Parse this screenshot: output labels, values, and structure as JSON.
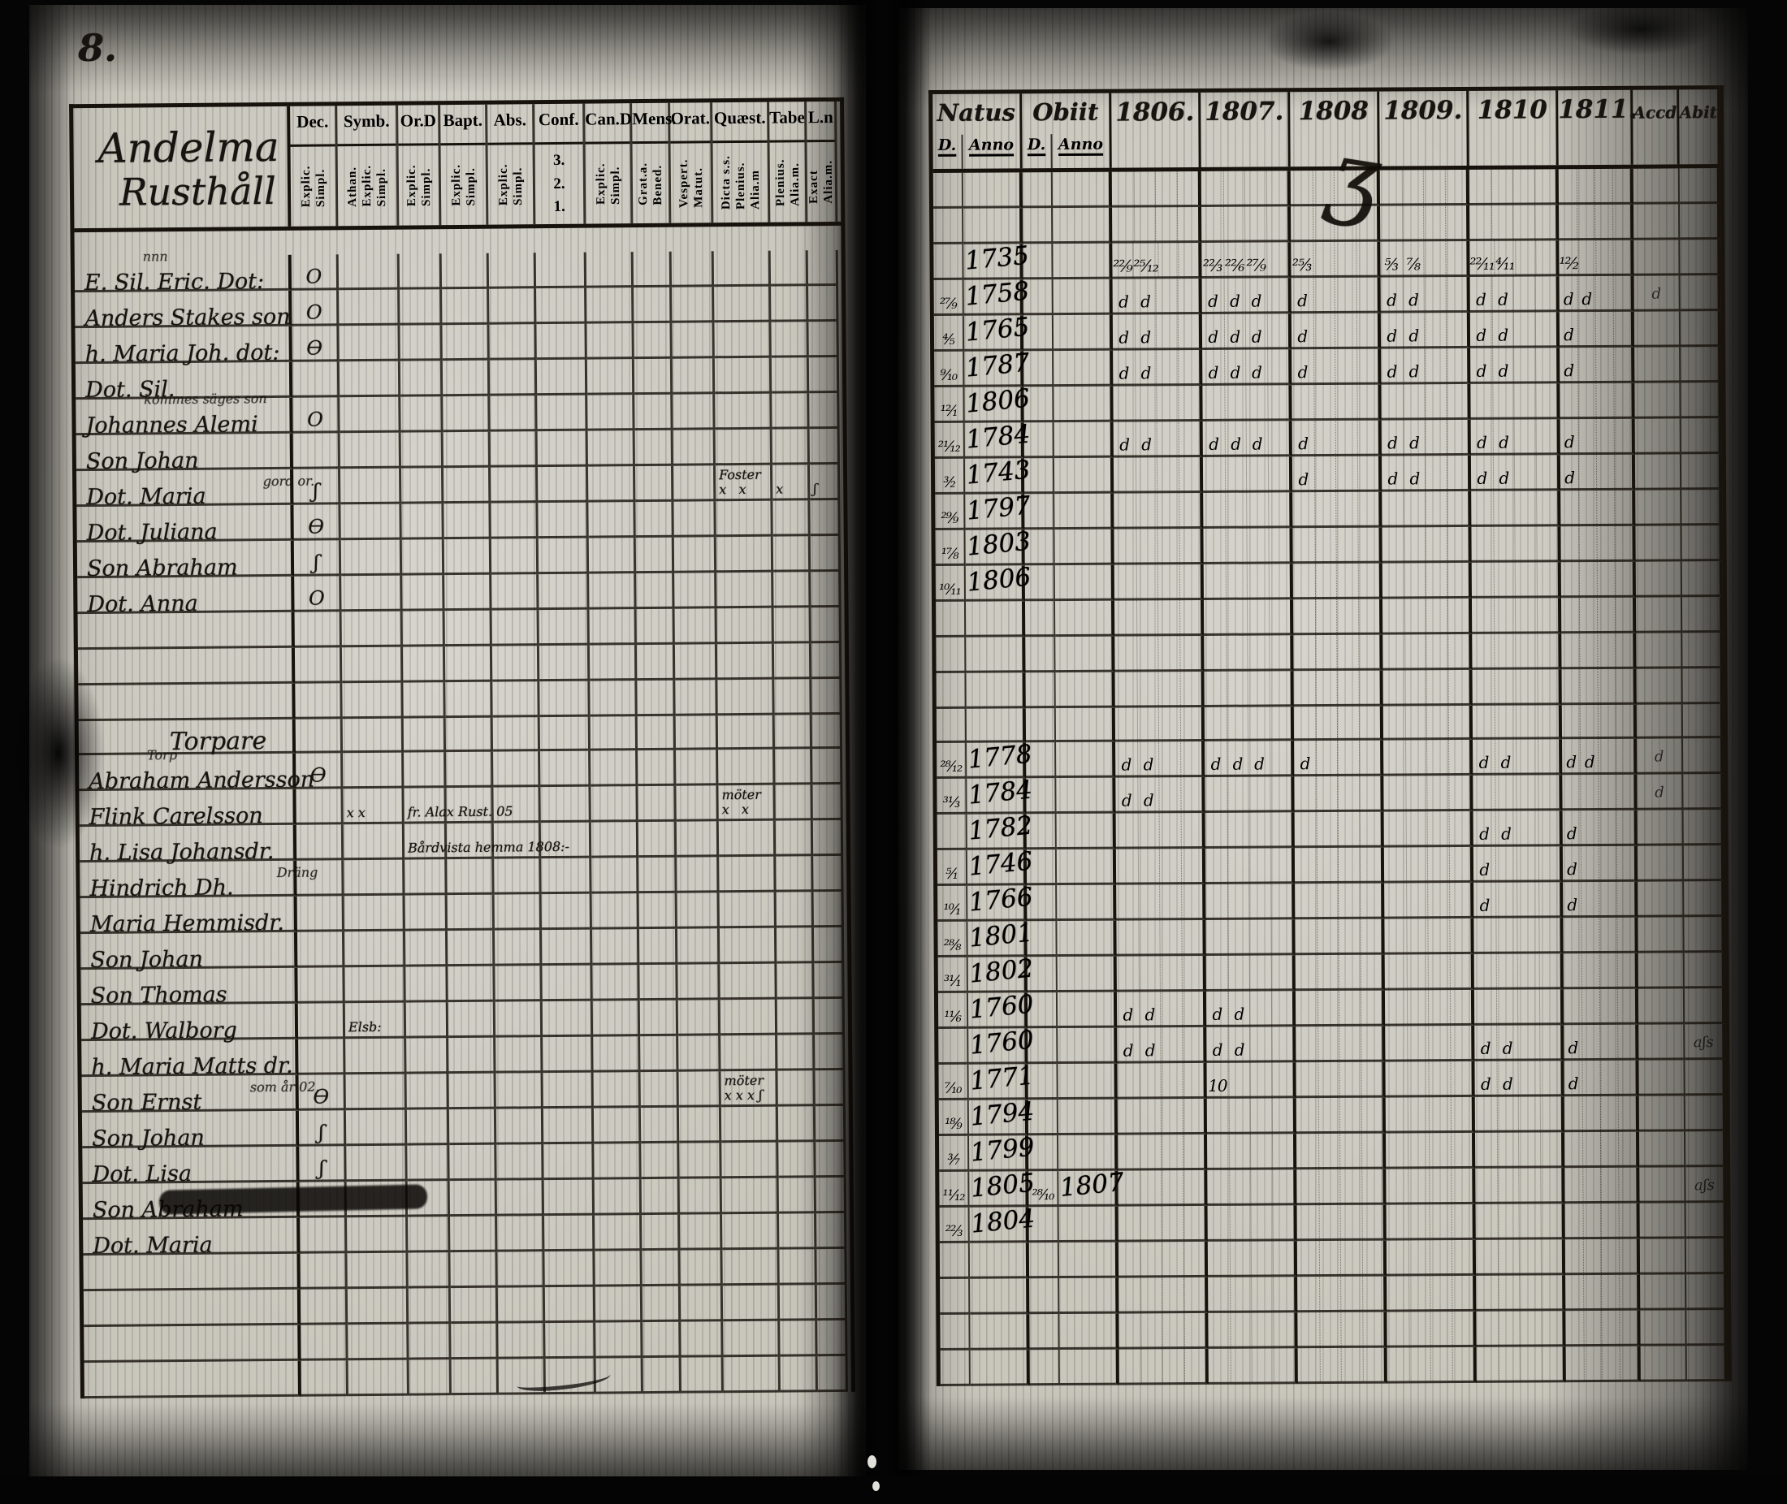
{
  "page_number": "8.",
  "left_page": {
    "title_line1": "Andelma",
    "title_line2": "Rusthåll",
    "section2_heading": "Torpare",
    "columns": [
      {
        "label": "Dec.",
        "sub_v": "Explic.\nSimpl.",
        "sub_h": ""
      },
      {
        "label": "Symb.",
        "sub_v": "Athan.\nExplic.\nSimpl.",
        "sub_h": ""
      },
      {
        "label": "Or.D",
        "sub_v": "Explic.\nSimpl.",
        "sub_h": ""
      },
      {
        "label": "Bapt.",
        "sub_v": "Explic.\nSimpl.",
        "sub_h": ""
      },
      {
        "label": "Abs.",
        "sub_v": "Explic.\nSimpl.",
        "sub_h": ""
      },
      {
        "label": "Conf.",
        "sub_v": "",
        "sub_h": "3.\n2.\n1."
      },
      {
        "label": "Can.D",
        "sub_v": "Explic.\nSimpl.",
        "sub_h": ""
      },
      {
        "label": "Mens.",
        "sub_v": "Grat.a.\nBened.",
        "sub_h": ""
      },
      {
        "label": "Orat.",
        "sub_v": "Vespert.\nMatut.",
        "sub_h": ""
      },
      {
        "label": "Quæst.",
        "sub_v": "Dicta s.s.\nPlenius.\nAlia.m",
        "sub_h": ""
      },
      {
        "label": "Tabe",
        "sub_v": "Plenius.\nAlia.m.",
        "sub_h": ""
      },
      {
        "label": "L.n",
        "sub_v": "Exact\nAlia.m.",
        "sub_h": ""
      }
    ],
    "rows1": [
      {
        "above": "nnn",
        "name": "E. Sil. Eric. Dot:",
        "dec": "O"
      },
      {
        "name": "Anders Stakes son",
        "dec": "O"
      },
      {
        "name": "h. Maria Joh. dot:",
        "dec": "Ɵ"
      },
      {
        "name": "Dot. Sil."
      },
      {
        "above": "kommes säges son",
        "name": "Johannes Alemi",
        "dec": "O"
      },
      {
        "name": "Son Johan"
      },
      {
        "name": "Dot. Maria",
        "note": "gord or.",
        "dec": "ʃ",
        "quaest": "Foster\nx   x",
        "tabe": "x",
        "ln": "ʃ"
      },
      {
        "name": "Dot. Juliana",
        "dec": "Ɵ"
      },
      {
        "name": "Son Abraham",
        "dec": "ʃ"
      },
      {
        "name": "Dot. Anna",
        "dec": "O"
      },
      {},
      {},
      {}
    ],
    "rows2": [
      {
        "above": "Torp",
        "name": "Abraham Andersson",
        "dec": "Ɵ"
      },
      {
        "name": "Flink Carelsson",
        "symb": "x x",
        "ord": "fr. Alax Rust. 05",
        "quaest": "möter\nx   x"
      },
      {
        "name": "h. Lisa Johansdr.",
        "ord": "Bårdvista hemma 1808:-"
      },
      {
        "name": "Hindrich Dh.",
        "note": "Dräng"
      },
      {
        "name": "Maria Hemmisdr."
      },
      {
        "name": "Son Johan"
      },
      {
        "name": "Son Thomas"
      },
      {
        "name": "Dot. Walborg",
        "symb": "Elsb:"
      },
      {
        "name": "h. Maria Matts dr."
      },
      {
        "name": "Son Ernst",
        "note": "som år 02.",
        "dec": "Ɵ",
        "quaest": "möter\nx x x ʃ"
      },
      {
        "name": "Son Johan",
        "dec": "ʃ"
      },
      {
        "name": "Dot. Lisa",
        "dec": "ʃ"
      },
      {
        "name": "Son Abraham"
      },
      {
        "name": "Dot. Maria"
      },
      {},
      {},
      {},
      {}
    ]
  },
  "right_page": {
    "natus_label": "Natus",
    "obiit_label": "Obiit",
    "d_label": "D.",
    "anno_label": "Anno",
    "accd_label": "Accd",
    "abit_label": "Abit",
    "years": [
      "1806.",
      "1807.",
      "1808",
      "1809.",
      "1810",
      "1811."
    ],
    "rows1": [
      {},
      {},
      {
        "anno": "1735",
        "y06": [
          "²²⁄₉",
          "²⁵⁄₁₂",
          "",
          ""
        ],
        "y07": [
          "²²⁄₃",
          "²²⁄₆",
          "²⁷⁄₉",
          ""
        ],
        "y08": [
          "²⁵⁄₃",
          "",
          "",
          ""
        ],
        "y09": [
          "⁵⁄₃",
          "⁷⁄₈",
          "",
          ""
        ],
        "y10": [
          "²²⁄₁₁",
          "⁴⁄₁₁",
          "",
          ""
        ],
        "y11": [
          "¹²⁄₂",
          "",
          "",
          ""
        ]
      },
      {
        "d": "²⁷⁄₉",
        "anno": "1758",
        "y06": [
          "d",
          "d",
          "",
          ""
        ],
        "y07": [
          "d",
          "d",
          "d",
          ""
        ],
        "y08": [
          "d",
          "",
          "",
          ""
        ],
        "y09": [
          "d",
          "d",
          "",
          ""
        ],
        "y10": [
          "d",
          "d",
          "",
          ""
        ],
        "y11": [
          "d",
          "d",
          "",
          ""
        ],
        "accd": "d"
      },
      {
        "d": "⁴⁄₅",
        "anno": "1765",
        "y06": [
          "d",
          "d",
          "",
          ""
        ],
        "y07": [
          "d",
          "d",
          "d",
          ""
        ],
        "y08": [
          "d",
          "",
          "",
          ""
        ],
        "y09": [
          "d",
          "d",
          "",
          ""
        ],
        "y10": [
          "d",
          "d",
          "",
          ""
        ],
        "y11": [
          "d",
          "",
          "",
          ""
        ]
      },
      {
        "d": "⁹⁄₁₀",
        "anno": "1787",
        "y06": [
          "d",
          "d",
          "",
          ""
        ],
        "y07": [
          "d",
          "d",
          "d",
          ""
        ],
        "y08": [
          "d",
          "",
          "",
          ""
        ],
        "y09": [
          "d",
          "d",
          "",
          ""
        ],
        "y10": [
          "d",
          "d",
          "",
          ""
        ],
        "y11": [
          "d",
          "",
          "",
          ""
        ]
      },
      {
        "d": "¹²⁄₁",
        "anno": "1806"
      },
      {
        "d": "²¹⁄₁₂",
        "anno": "1784",
        "y06": [
          "d",
          "d",
          "",
          ""
        ],
        "y07": [
          "d",
          "d",
          "d",
          ""
        ],
        "y08": [
          "d",
          "",
          "",
          ""
        ],
        "y09": [
          "d",
          "d",
          "",
          ""
        ],
        "y10": [
          "d",
          "d",
          "",
          ""
        ],
        "y11": [
          "d",
          "",
          "",
          ""
        ]
      },
      {
        "d": "³⁄₂",
        "anno": "1743",
        "y08": [
          "d",
          "",
          "",
          ""
        ],
        "y09": [
          "d",
          "d",
          "",
          ""
        ],
        "y10": [
          "d",
          "d",
          "",
          ""
        ],
        "y11": [
          "d",
          "",
          "",
          ""
        ]
      },
      {
        "d": "²⁹⁄₉",
        "anno": "1797"
      },
      {
        "d": "¹⁷⁄₈",
        "anno": "1803"
      },
      {
        "d": "¹⁰⁄₁₁",
        "anno": "1806"
      },
      {},
      {},
      {}
    ],
    "rows2": [
      {
        "d": "²⁸⁄₁₂",
        "anno": "1778",
        "y06": [
          "d",
          "d",
          "",
          ""
        ],
        "y07": [
          "d",
          "d",
          "d",
          ""
        ],
        "y08": [
          "d",
          "",
          "",
          ""
        ],
        "y10": [
          "d",
          "d",
          "",
          ""
        ],
        "y11": [
          "d",
          "d",
          "",
          ""
        ],
        "accd": "d"
      },
      {
        "d": "³¹⁄₃",
        "anno": "1784",
        "y06": [
          "d",
          "d",
          "",
          ""
        ],
        "accd": "d"
      },
      {
        "anno": "1782",
        "y10": [
          "d",
          "d",
          "",
          ""
        ],
        "y11": [
          "d",
          "",
          "",
          ""
        ]
      },
      {
        "d": "⁵⁄₁",
        "anno": "1746",
        "y10": [
          "d",
          "",
          "",
          ""
        ],
        "y11": [
          "d",
          "",
          "",
          ""
        ]
      },
      {
        "d": "¹⁰⁄₁",
        "anno": "1766",
        "y10": [
          "d",
          "",
          "",
          ""
        ],
        "y11": [
          "d",
          "",
          "",
          ""
        ]
      },
      {
        "d": "²⁸⁄₈",
        "anno": "1801"
      },
      {
        "d": "³¹⁄₁",
        "anno": "1802"
      },
      {
        "d": "¹¹⁄₆",
        "anno": "1760",
        "y06": [
          "d",
          "d",
          "",
          ""
        ],
        "y07": [
          "d",
          "d",
          "",
          ""
        ]
      },
      {
        "anno": "1760",
        "y06": [
          "d",
          "d",
          "",
          ""
        ],
        "y07": [
          "d",
          "d",
          "",
          ""
        ],
        "y10": [
          "d",
          "d",
          "",
          ""
        ],
        "y11": [
          "d",
          "",
          "",
          ""
        ],
        "abit": "aʃs"
      },
      {
        "d": "⁷⁄₁₀",
        "anno": "1771",
        "y07": [
          "10",
          "",
          "",
          ""
        ],
        "y10": [
          "d",
          "d",
          "",
          ""
        ],
        "y11": [
          "d",
          "",
          "",
          ""
        ]
      },
      {
        "d": "¹⁸⁄₉",
        "anno": "1794"
      },
      {
        "d": "³⁄₇",
        "anno": "1799"
      },
      {
        "d": "¹¹⁄₁₂",
        "anno": "1805",
        "od": "²⁸⁄₁₀",
        "oanno": "1807",
        "abit": "aʃs"
      },
      {
        "d": "²²⁄₃",
        "anno": "1804"
      },
      {},
      {},
      {},
      {}
    ]
  },
  "artifacts": {
    "flourish_glyph": "ʒ"
  }
}
